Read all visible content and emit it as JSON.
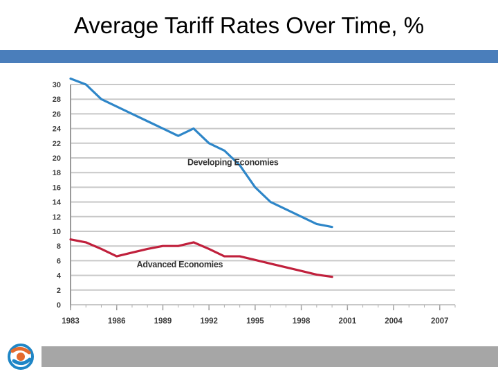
{
  "slide": {
    "title": "Average Tariff Rates Over Time, %"
  },
  "colors": {
    "title_bar": "#4a7ebb",
    "footer_bar": "#a6a6a6",
    "developing": "#2e86c8",
    "advanced": "#c0203c",
    "grid": "#c8c8c8",
    "tick_text": "#3a3a3a",
    "logo_orange": "#e56a2c",
    "logo_blue": "#1f86c6"
  },
  "logo": {
    "icon": "globe-swirl-logo-icon"
  },
  "chart_data": {
    "type": "line",
    "title": "",
    "xlabel": "",
    "ylabel": "",
    "xlim": [
      1983,
      2008
    ],
    "ylim": [
      0,
      30
    ],
    "grid": true,
    "legend": "inline labels",
    "x_ticks": [
      "1983",
      "1986",
      "1989",
      "1992",
      "1995",
      "1998",
      "2001",
      "2004",
      "2007"
    ],
    "y_ticks": [
      "0",
      "2",
      "4",
      "6",
      "8",
      "10",
      "12",
      "14",
      "16",
      "18",
      "20",
      "22",
      "24",
      "26",
      "28",
      "30"
    ],
    "series": [
      {
        "name": "Developing Economies",
        "x": [
          1983,
          1984,
          1985,
          1986,
          1987,
          1988,
          1989,
          1990,
          1991,
          1992,
          1993,
          1994,
          1995,
          1996,
          1997,
          1998,
          1999,
          2000
        ],
        "y": [
          30.8,
          30,
          28,
          27,
          26,
          25,
          24,
          23,
          24,
          22,
          21,
          19,
          16,
          14,
          13,
          12,
          11,
          10.6
        ]
      },
      {
        "name": "Advanced Economies",
        "x": [
          1983,
          1984,
          1985,
          1986,
          1987,
          1988,
          1989,
          1990,
          1991,
          1992,
          1993,
          1994,
          1995,
          1996,
          1997,
          1998,
          1999,
          2000
        ],
        "y": [
          8.9,
          8.5,
          7.6,
          6.6,
          7.1,
          7.6,
          8,
          8,
          8.5,
          7.6,
          6.6,
          6.6,
          6.1,
          5.6,
          5.1,
          4.6,
          4.1,
          3.8
        ]
      }
    ]
  }
}
